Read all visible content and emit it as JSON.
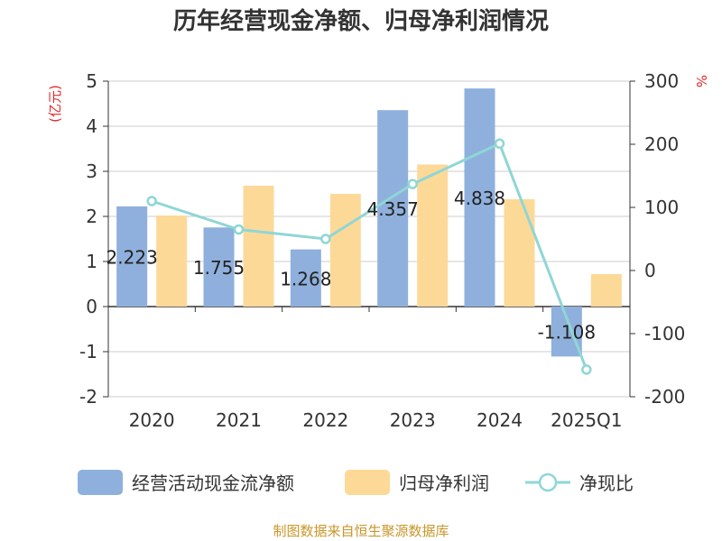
{
  "chart_data": {
    "type": "bar",
    "title": "历年经营现金净额、归母净利润情况",
    "categories": [
      "2020",
      "2021",
      "2022",
      "2023",
      "2024",
      "2025Q1"
    ],
    "left_axis": {
      "unit": "(亿元)",
      "min": -2,
      "max": 5,
      "ticks": [
        -2,
        -1,
        0,
        1,
        2,
        3,
        4,
        5
      ]
    },
    "right_axis": {
      "unit": "%",
      "min": -200,
      "max": 300,
      "ticks": [
        -200,
        -100,
        0,
        100,
        200,
        300
      ]
    },
    "series": [
      {
        "name": "经营活动现金流净额",
        "type": "bar",
        "axis": "left",
        "color": "#8fb0dc",
        "values": [
          2.223,
          1.755,
          1.268,
          4.357,
          4.838,
          -1.108
        ],
        "labels": [
          "2.223",
          "1.755",
          "1.268",
          "4.357",
          "4.838",
          "-1.108"
        ]
      },
      {
        "name": "归母净利润",
        "type": "bar",
        "axis": "left",
        "color": "#fdd998",
        "values": [
          2.02,
          2.68,
          2.5,
          3.15,
          2.38,
          0.72
        ]
      },
      {
        "name": "净现比",
        "type": "line",
        "axis": "right",
        "color": "#8fd6d6",
        "values": [
          110,
          65,
          50,
          137,
          201,
          -157
        ]
      }
    ],
    "grid": true,
    "legend_position": "bottom",
    "source": "制图数据来自恒生聚源数据库"
  }
}
